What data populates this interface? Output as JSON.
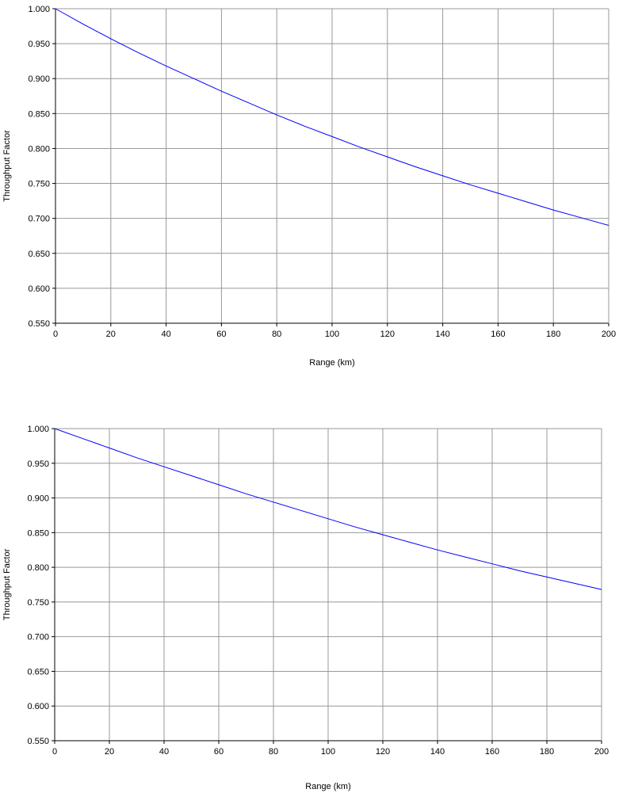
{
  "colors": {
    "line": "#0000ff",
    "grid": "#999999",
    "axis": "#000000",
    "background": "#ffffff"
  },
  "chart_data": [
    {
      "type": "line",
      "title": "",
      "xlabel": "Range (km)",
      "ylabel": "Throughput Factor",
      "xlim": [
        0,
        200
      ],
      "ylim": [
        0.55,
        1.0
      ],
      "xticks": [
        "0",
        "20",
        "40",
        "60",
        "80",
        "100",
        "120",
        "140",
        "160",
        "180",
        "200"
      ],
      "yticks": [
        "0.550",
        "0.600",
        "0.650",
        "0.700",
        "0.750",
        "0.800",
        "0.850",
        "0.900",
        "0.950",
        "1.000"
      ],
      "grid": true,
      "legend": "none",
      "series": [
        {
          "x": [
            0,
            10,
            20,
            30,
            40,
            50,
            60,
            70,
            80,
            90,
            100,
            110,
            120,
            130,
            140,
            150,
            160,
            170,
            180,
            190,
            200
          ],
          "y": [
            1.0,
            0.978,
            0.957,
            0.937,
            0.918,
            0.9,
            0.882,
            0.865,
            0.848,
            0.832,
            0.817,
            0.802,
            0.788,
            0.774,
            0.761,
            0.748,
            0.736,
            0.724,
            0.712,
            0.701,
            0.69
          ]
        }
      ]
    },
    {
      "type": "line",
      "title": "",
      "xlabel": "Range (km)",
      "ylabel": "Throughput Factor",
      "xlim": [
        0,
        200
      ],
      "ylim": [
        0.55,
        1.0
      ],
      "xticks": [
        "0",
        "20",
        "40",
        "60",
        "80",
        "100",
        "120",
        "140",
        "160",
        "180",
        "200"
      ],
      "yticks": [
        "0.550",
        "0.600",
        "0.650",
        "0.700",
        "0.750",
        "0.800",
        "0.850",
        "0.900",
        "0.950",
        "1.000"
      ],
      "grid": true,
      "legend": "none",
      "series": [
        {
          "x": [
            0,
            10,
            20,
            30,
            40,
            50,
            60,
            70,
            80,
            90,
            100,
            110,
            120,
            130,
            140,
            150,
            160,
            170,
            180,
            190,
            200
          ],
          "y": [
            1.0,
            0.986,
            0.972,
            0.958,
            0.945,
            0.932,
            0.919,
            0.906,
            0.894,
            0.882,
            0.87,
            0.858,
            0.847,
            0.836,
            0.825,
            0.815,
            0.805,
            0.795,
            0.786,
            0.777,
            0.768
          ]
        }
      ]
    }
  ]
}
